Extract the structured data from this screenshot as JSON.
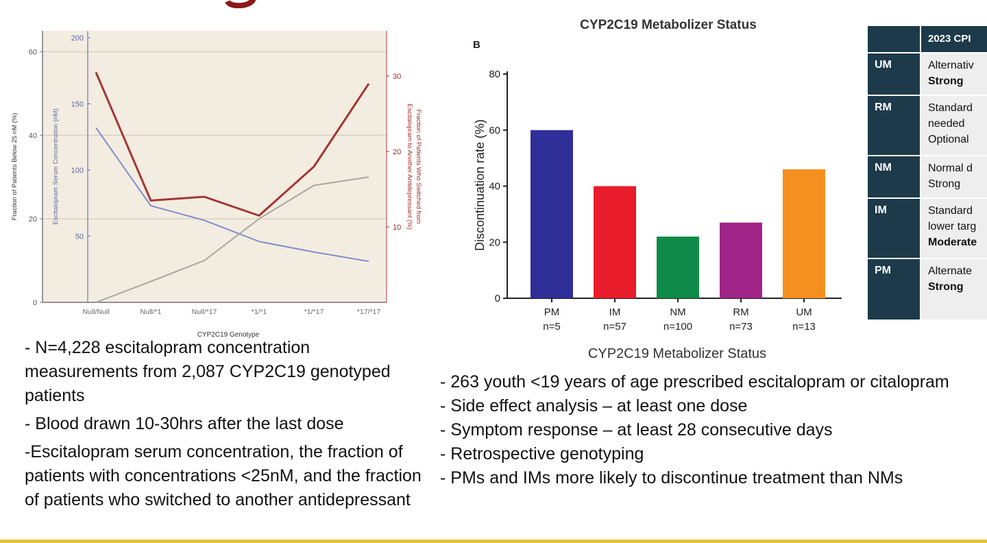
{
  "left_chart": {
    "chart_data": {
      "type": "line",
      "categories": [
        "Null/Null",
        "Null/*1",
        "Null/*17",
        "*1/*1",
        "*1/*17",
        "*17/*17"
      ],
      "xlabel": "CYP2C19 Genotype",
      "y_axes": [
        {
          "label": "Fraction of Patients Below 25 nM (%)",
          "range": [
            0,
            65
          ],
          "ticks": [
            "0",
            "20",
            "40",
            "60"
          ],
          "side": "outer-left"
        },
        {
          "label": "Escitalopram Serum Concentration (nM)",
          "range": [
            0,
            200
          ],
          "ticks": [
            "50",
            "100",
            "150",
            "200"
          ],
          "side": "inner-left",
          "color": "#5a6aaa"
        },
        {
          "label": "Fraction of Patients Who Switched from Escitalopram to Another Antidepressant (%)",
          "range": [
            0,
            36
          ],
          "ticks": [
            "10",
            "20",
            "30"
          ],
          "side": "right",
          "color": "#9b2a2a"
        }
      ],
      "series": [
        {
          "axis": 1,
          "color": "#7f8ecc",
          "values": [
            132,
            73,
            62,
            46,
            38,
            31
          ]
        },
        {
          "axis": 2,
          "color": "#a23535",
          "values": [
            30.5,
            13.5,
            14,
            11.5,
            18,
            29
          ]
        },
        {
          "axis": 0,
          "color": "#a8a8a0",
          "values": [
            0,
            5,
            10,
            20,
            28,
            30
          ]
        }
      ],
      "background": "#f3ece0"
    }
  },
  "right_chart": {
    "chart_data": {
      "type": "bar",
      "title": "CYP2C19 Metabolizer Status",
      "panel_label": "B",
      "categories": [
        "PM",
        "IM",
        "NM",
        "RM",
        "UM"
      ],
      "n_labels": [
        "n=5",
        "n=57",
        "n=100",
        "n=73",
        "n=13"
      ],
      "values": [
        60,
        40,
        22,
        27,
        46
      ],
      "colors": [
        "#2f2f9a",
        "#e81c2a",
        "#0f8a48",
        "#a12489",
        "#f59020"
      ],
      "xlabel": "CYP2C19 Metabolizer Status",
      "ylabel": "Discontinuation rate (%)",
      "ylim": [
        0,
        80
      ],
      "yticks": [
        "0",
        "20",
        "40",
        "60",
        "80"
      ]
    }
  },
  "cpic_table": {
    "header": "2023 CPI",
    "rows": [
      {
        "label": "UM",
        "lines": [
          "Alternativ",
          "Strong"
        ],
        "bold": [
          false,
          true
        ]
      },
      {
        "label": "RM",
        "lines": [
          "Standard",
          "needed",
          "Optional"
        ],
        "bold": [
          false,
          false,
          false
        ]
      },
      {
        "label": "NM",
        "lines": [
          "Normal d",
          "Strong"
        ],
        "bold": [
          false,
          false
        ]
      },
      {
        "label": "IM",
        "lines": [
          "Standard",
          "lower targ",
          "Moderate"
        ],
        "bold": [
          false,
          false,
          true
        ]
      },
      {
        "label": "PM",
        "lines": [
          "Alternate",
          "Strong"
        ],
        "bold": [
          false,
          true
        ]
      }
    ]
  },
  "left_bullets": [
    "- N=4,228 escitalopram concentration measurements from 2,087 CYP2C19 genotyped patients",
    "- Blood drawn 10-30hrs after the last dose",
    " -Escitalopram serum concentration, the fraction of patients  with concentrations <25nM, and the fraction of patients who switched to another antidepressant"
  ],
  "right_bullets": [
    "- 263 youth <19 years of age prescribed escitalopram or citalopram",
    "- Side effect analysis – at least one dose",
    "- Symptom response – at least 28 consecutive days",
    "- Retrospective genotyping",
    "- PMs and IMs more likely to discontinue treatment than NMs"
  ],
  "colors": {
    "title_red": "#8b1a1a",
    "bottom_rule": "#e4c23d",
    "table_dark": "#1c3a4a"
  }
}
